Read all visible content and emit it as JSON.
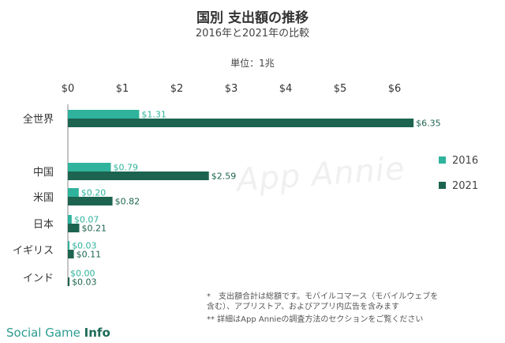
{
  "title": "国別 支出額の推移",
  "subtitle": "2016年と2021年の比較",
  "unit_label": "単位：1兆",
  "watermark": "App Annie",
  "footnotes": [
    "*　支出額合計は総額です。モバイルコマース（モバイルウェブを",
    "含む）、アプリストア、およびアプリ内広告を含みます",
    "**  詳細はApp Annieの調査方法のセクションをご覧ください"
  ],
  "brand": {
    "prefix": "Social Game ",
    "suffix": "Info"
  },
  "colors": {
    "s2016": "#2fb39c",
    "s2021": "#1d6450"
  },
  "chart_data": {
    "type": "bar",
    "orientation": "horizontal",
    "categories": [
      "全世界",
      "中国",
      "米国",
      "日本",
      "イギリス",
      "インド"
    ],
    "series": [
      {
        "name": "2016",
        "values": [
          1.31,
          0.79,
          0.2,
          0.07,
          0.03,
          0.0
        ],
        "labels": [
          "$1.31",
          "$0.79",
          "$0.20",
          "$0.07",
          "$0.03",
          "$0.00"
        ]
      },
      {
        "name": "2021",
        "values": [
          6.35,
          2.59,
          0.82,
          0.21,
          0.11,
          0.03
        ],
        "labels": [
          "$6.35",
          "$2.59",
          "$0.82",
          "$0.21",
          "$0.11",
          "$0.03"
        ]
      }
    ],
    "xlim": [
      0,
      6.5
    ],
    "xticks": [
      0,
      1,
      2,
      3,
      4,
      5,
      6
    ],
    "xtick_labels": [
      "$0",
      "$1",
      "$2",
      "$3",
      "$4",
      "$5",
      "$6"
    ],
    "axis_position": "top",
    "grid": false,
    "legend": "right"
  }
}
